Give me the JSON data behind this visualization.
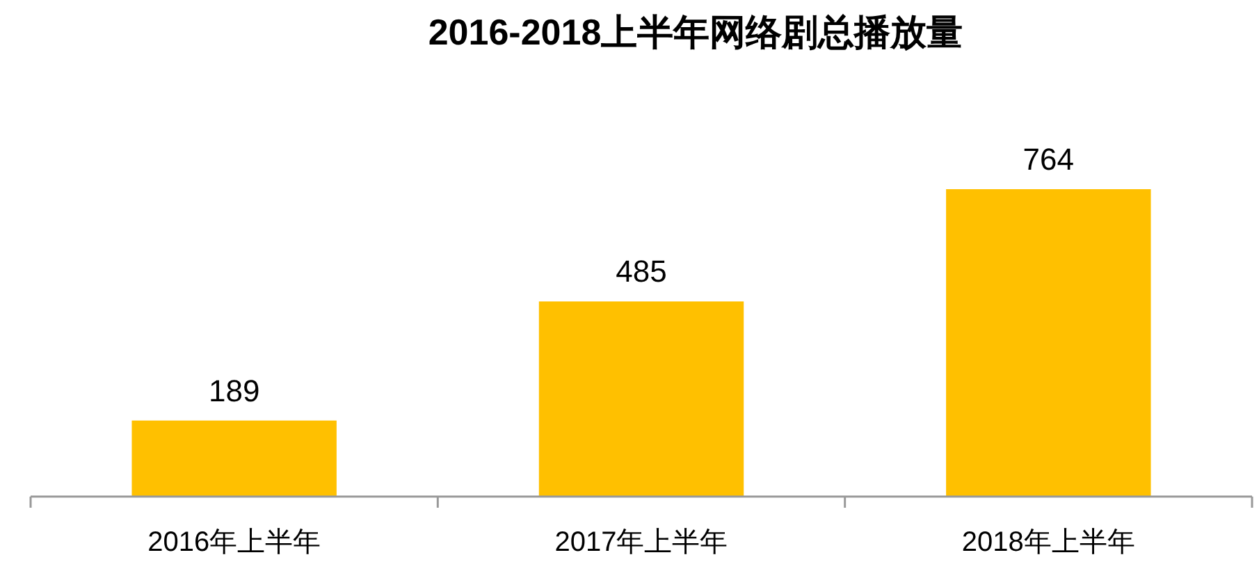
{
  "chart_data": {
    "type": "bar",
    "title": "2016-2018上半年网络剧总播放量",
    "categories": [
      "2016年上半年",
      "2017年上半年",
      "2018年上半年"
    ],
    "values": [
      189,
      485,
      764
    ],
    "color": "#ffc000",
    "data_labels": true
  }
}
